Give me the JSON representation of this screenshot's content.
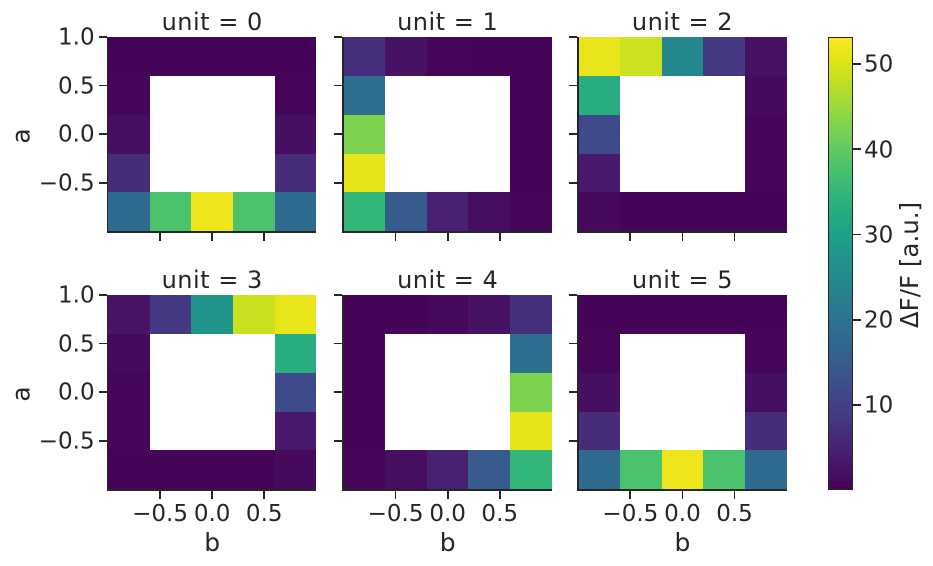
{
  "figure": {
    "background": "#ffffff",
    "text_color": "#262626",
    "spine_color": "#262626",
    "colormap": "viridis"
  },
  "axes": {
    "xlabel": "b",
    "ylabel": "a",
    "xlim": [
      -1,
      1
    ],
    "ylim": [
      -1,
      1
    ],
    "xticks": {
      "values": [
        -0.5,
        0.0,
        0.5
      ],
      "labels": [
        "−0.5",
        "0.0",
        "0.5"
      ]
    },
    "yticks": {
      "values": [
        1.0,
        0.5,
        0.0,
        -0.5
      ],
      "labels": [
        "1.0",
        "0.5",
        "0.0",
        "−0.5"
      ]
    }
  },
  "colorbar": {
    "label": "ΔF/F [a.u.]",
    "vmin": 0.1,
    "vmax": 53.1,
    "ticks": [
      10,
      20,
      30,
      40,
      50
    ],
    "tick_labels": [
      "10",
      "20",
      "30",
      "40",
      "50"
    ]
  },
  "chart_data": {
    "type": "heatmap",
    "facet_by": "unit",
    "grid": "2 rows x 3 cols",
    "x": [
      -0.8,
      -0.4,
      0.0,
      0.4,
      0.8
    ],
    "y": [
      0.8,
      0.4,
      0.0,
      -0.4,
      -0.8
    ],
    "mask": "central 3x3 cells of each 5x5 grid are masked (white)",
    "value_units": "ΔF/F [a.u.]",
    "panels": [
      {
        "title": "unit = 0",
        "values": [
          [
            0.5,
            0.5,
            0.5,
            0.5,
            0.5
          ],
          [
            0.7,
            null,
            null,
            null,
            0.7
          ],
          [
            2.0,
            null,
            null,
            null,
            2.0
          ],
          [
            6.6,
            null,
            null,
            null,
            6.6
          ],
          [
            18.3,
            37.9,
            51.7,
            37.9,
            18.3
          ]
        ]
      },
      {
        "title": "unit = 1",
        "values": [
          [
            7.2,
            2.5,
            0.7,
            0.5,
            0.5
          ],
          [
            19.3,
            null,
            null,
            null,
            0.5
          ],
          [
            42.7,
            null,
            null,
            null,
            0.5
          ],
          [
            51.0,
            null,
            null,
            null,
            0.5
          ],
          [
            35.0,
            15.1,
            4.7,
            1.7,
            0.7
          ]
        ]
      },
      {
        "title": "unit = 2",
        "values": [
          [
            51.2,
            49.0,
            24.4,
            9.0,
            2.2
          ],
          [
            33.1,
            null,
            null,
            null,
            1.3
          ],
          [
            11.9,
            null,
            null,
            null,
            0.6
          ],
          [
            3.6,
            null,
            null,
            null,
            0.6
          ],
          [
            1.2,
            0.5,
            0.5,
            0.5,
            0.5
          ]
        ]
      },
      {
        "title": "unit = 3",
        "values": [
          [
            2.8,
            8.7,
            27.8,
            48.8,
            51.2
          ],
          [
            1.3,
            null,
            null,
            null,
            33.1
          ],
          [
            0.6,
            null,
            null,
            null,
            11.9
          ],
          [
            0.6,
            null,
            null,
            null,
            3.6
          ],
          [
            0.5,
            0.5,
            0.5,
            0.5,
            1.2
          ]
        ]
      },
      {
        "title": "unit = 4",
        "values": [
          [
            0.5,
            0.5,
            1.1,
            2.5,
            7.2
          ],
          [
            0.5,
            null,
            null,
            null,
            19.3
          ],
          [
            0.5,
            null,
            null,
            null,
            42.7
          ],
          [
            0.5,
            null,
            null,
            null,
            51.0
          ],
          [
            0.7,
            1.7,
            4.7,
            15.1,
            35.0
          ]
        ]
      },
      {
        "title": "unit = 5",
        "values": [
          [
            0.5,
            0.5,
            0.5,
            0.5,
            0.5
          ],
          [
            0.7,
            null,
            null,
            null,
            0.7
          ],
          [
            2.0,
            null,
            null,
            null,
            2.0
          ],
          [
            6.6,
            null,
            null,
            null,
            6.6
          ],
          [
            18.3,
            37.9,
            51.7,
            37.9,
            18.3
          ]
        ]
      }
    ]
  }
}
